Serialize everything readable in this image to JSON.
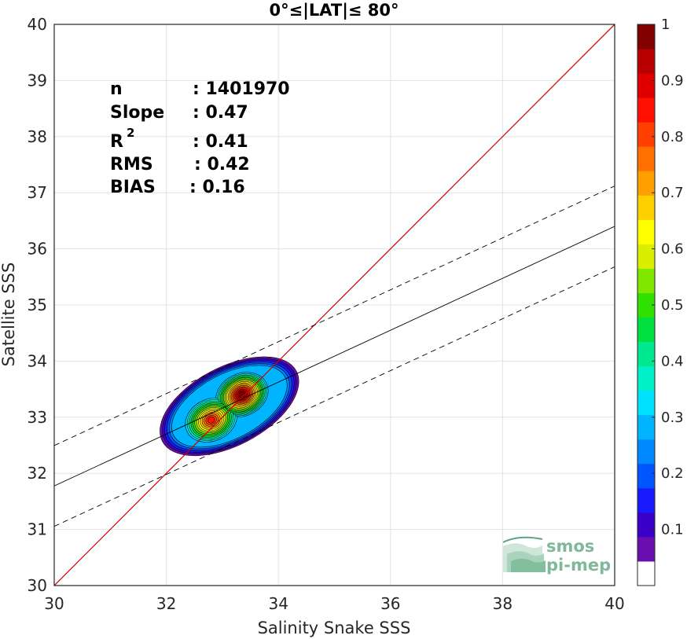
{
  "chart_data": {
    "type": "heatmap",
    "title": "0°≤|LAT|≤ 80°",
    "xlabel": "Salinity Snake SSS",
    "ylabel": "Satellite SSS",
    "xlim": [
      30,
      40
    ],
    "ylim": [
      30,
      40
    ],
    "xticks": [
      "30",
      "32",
      "34",
      "36",
      "38",
      "40"
    ],
    "yticks": [
      "30",
      "31",
      "32",
      "33",
      "34",
      "35",
      "36",
      "37",
      "38",
      "39",
      "40"
    ],
    "grid": true,
    "stats": {
      "n_label": "n",
      "n_value": ": 1401970",
      "slope_label": "Slope",
      "slope_value": ": 0.47",
      "r2_label": "R",
      "r2_sup": "2",
      "r2_value": ": 0.41",
      "rms_label": "RMS",
      "rms_value": ": 0.42",
      "bias_label": "BIAS",
      "bias_value": ": 0.16"
    },
    "one_to_one_line": {
      "x": [
        30,
        40
      ],
      "y": [
        30,
        40
      ],
      "color": "#cc0000"
    },
    "fit_line": {
      "slope": 0.4625,
      "intercept": 17.9,
      "color": "#000000"
    },
    "fit_band": {
      "offset": 0.72,
      "style": "dashed"
    },
    "density_peaks": [
      {
        "x": 33.35,
        "y": 33.4,
        "peak": 1.0
      },
      {
        "x": 32.8,
        "y": 32.95,
        "peak": 0.82
      }
    ],
    "colorbar": {
      "ticks": [
        "0.1",
        "0.2",
        "0.3",
        "0.4",
        "0.5",
        "0.6",
        "0.7",
        "0.8",
        "0.9",
        "1"
      ],
      "tick_values": [
        0.1,
        0.2,
        0.3,
        0.4,
        0.5,
        0.6,
        0.7,
        0.8,
        0.9,
        1.0
      ],
      "range": [
        0,
        1
      ],
      "colors": [
        "#ffffff",
        "#6a0dad",
        "#3a00c8",
        "#1a1aff",
        "#0055ff",
        "#0088ff",
        "#00b4ff",
        "#00e0ff",
        "#00f0c8",
        "#00e890",
        "#00e040",
        "#30e000",
        "#80e800",
        "#d8f000",
        "#ffff00",
        "#ffd000",
        "#ffa000",
        "#ff7000",
        "#ff4000",
        "#ff1000",
        "#e00000",
        "#b80000",
        "#800000"
      ]
    },
    "watermark": {
      "line1": "smos",
      "line2": "pi-mep"
    }
  }
}
